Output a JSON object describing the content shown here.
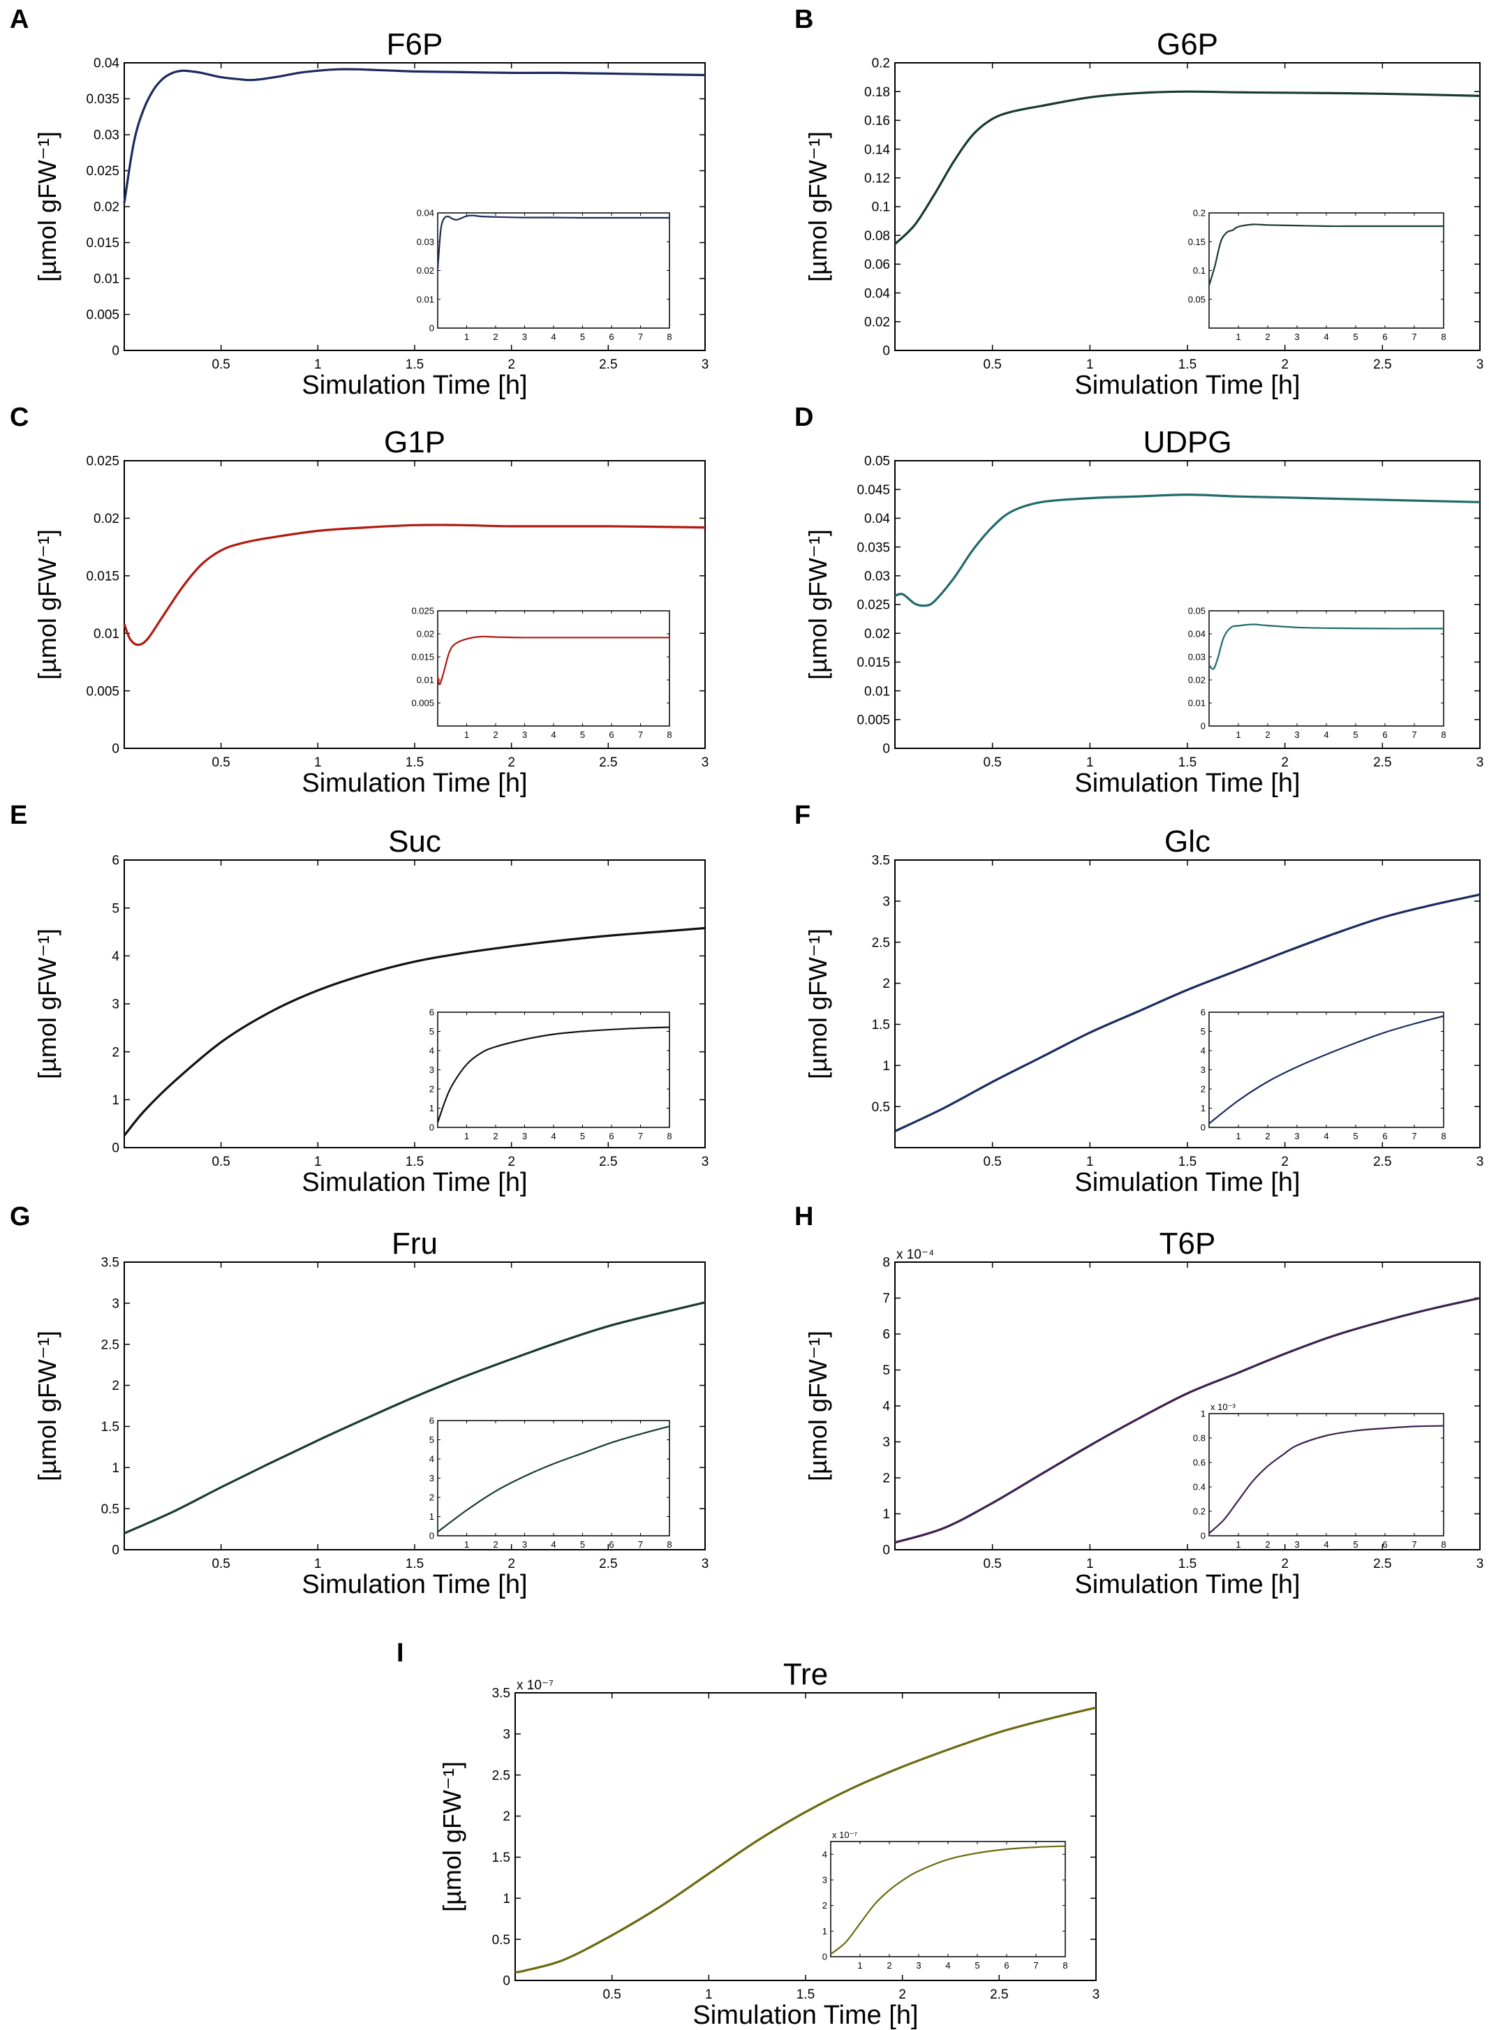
{
  "figure": {
    "ylabel": "[µmol gFW⁻¹]",
    "xlabel": "Simulation Time [h]"
  },
  "chart_data": [
    {
      "panel": "A",
      "type": "line",
      "title": "F6P",
      "color": "#1a2a5e",
      "xlabel": "Simulation Time [h]",
      "ylabel": "[µmol gFW⁻¹]",
      "xlim": [
        0,
        3
      ],
      "ylim": [
        0,
        0.04
      ],
      "xticks": [
        "0.5",
        "1",
        "1.5",
        "2",
        "2.5",
        "3"
      ],
      "yticks": [
        "0",
        "0.005",
        "0.01",
        "0.015",
        "0.02",
        "0.025",
        "0.03",
        "0.035",
        "0.04"
      ],
      "exponent": "",
      "x": [
        0,
        0.05,
        0.1,
        0.15,
        0.2,
        0.25,
        0.3,
        0.35,
        0.4,
        0.5,
        0.6,
        0.65,
        0.7,
        0.8,
        0.9,
        1.0,
        1.1,
        1.2,
        1.3,
        1.4,
        1.5,
        1.75,
        2.0,
        2.25,
        2.5,
        2.75,
        3.0
      ],
      "y": [
        0.0205,
        0.029,
        0.0335,
        0.0362,
        0.0378,
        0.0386,
        0.0389,
        0.0388,
        0.0386,
        0.038,
        0.0377,
        0.0376,
        0.0377,
        0.0381,
        0.0386,
        0.0389,
        0.0391,
        0.0391,
        0.039,
        0.0389,
        0.0388,
        0.0387,
        0.0386,
        0.0386,
        0.0385,
        0.0384,
        0.0383
      ],
      "inset": {
        "xlim": [
          0,
          8
        ],
        "ylim": [
          0,
          0.04
        ],
        "xticks": [
          "1",
          "2",
          "3",
          "4",
          "5",
          "6",
          "7",
          "8"
        ],
        "yticks": [
          "0",
          "0.01",
          "0.02",
          "0.03",
          "0.04"
        ],
        "exponent": "",
        "x": [
          0,
          0.1,
          0.2,
          0.35,
          0.5,
          0.65,
          0.8,
          1.0,
          1.2,
          1.5,
          2,
          3,
          4,
          5,
          6,
          7,
          8
        ],
        "y": [
          0.0205,
          0.0335,
          0.0378,
          0.0388,
          0.038,
          0.0376,
          0.0381,
          0.0389,
          0.0391,
          0.0388,
          0.0386,
          0.0384,
          0.0384,
          0.0383,
          0.0383,
          0.0383,
          0.0383
        ]
      }
    },
    {
      "panel": "B",
      "type": "line",
      "title": "G6P",
      "color": "#173b2e",
      "xlabel": "Simulation Time [h]",
      "ylabel": "[µmol gFW⁻¹]",
      "xlim": [
        0,
        3
      ],
      "ylim": [
        0,
        0.2
      ],
      "xticks": [
        "0.5",
        "1",
        "1.5",
        "2",
        "2.5",
        "3"
      ],
      "yticks": [
        "0",
        "0.02",
        "0.04",
        "0.06",
        "0.08",
        "0.1",
        "0.12",
        "0.14",
        "0.16",
        "0.18",
        "0.2"
      ],
      "exponent": "",
      "x": [
        0,
        0.1,
        0.2,
        0.3,
        0.4,
        0.5,
        0.6,
        0.75,
        1.0,
        1.25,
        1.5,
        1.75,
        2.0,
        2.5,
        3.0
      ],
      "y": [
        0.074,
        0.087,
        0.108,
        0.131,
        0.15,
        0.161,
        0.166,
        0.17,
        0.176,
        0.179,
        0.18,
        0.1795,
        0.1792,
        0.1785,
        0.177
      ],
      "inset": {
        "xlim": [
          0,
          8
        ],
        "ylim": [
          0,
          0.2
        ],
        "xticks": [
          "1",
          "2",
          "3",
          "4",
          "5",
          "6",
          "7",
          "8"
        ],
        "yticks": [
          "0.05",
          "0.1",
          "0.15",
          "0.2"
        ],
        "exponent": "",
        "x": [
          0,
          0.2,
          0.4,
          0.6,
          0.8,
          1.0,
          1.5,
          2,
          3,
          4,
          5,
          6,
          7,
          8
        ],
        "y": [
          0.074,
          0.108,
          0.15,
          0.166,
          0.17,
          0.176,
          0.18,
          0.179,
          0.178,
          0.177,
          0.177,
          0.177,
          0.177,
          0.177
        ]
      }
    },
    {
      "panel": "C",
      "type": "line",
      "title": "G1P",
      "color": "#b01a10",
      "xlabel": "Simulation Time [h]",
      "ylabel": "[µmol gFW⁻¹]",
      "xlim": [
        0,
        3
      ],
      "ylim": [
        0,
        0.025
      ],
      "xticks": [
        "0.5",
        "1",
        "1.5",
        "2",
        "2.5",
        "3"
      ],
      "yticks": [
        "0",
        "0.005",
        "0.01",
        "0.015",
        "0.02",
        "0.025"
      ],
      "exponent": "",
      "x": [
        0,
        0.03,
        0.07,
        0.12,
        0.2,
        0.3,
        0.4,
        0.5,
        0.6,
        0.75,
        1.0,
        1.25,
        1.5,
        1.75,
        2.0,
        2.5,
        3.0
      ],
      "y": [
        0.0108,
        0.0095,
        0.009,
        0.0095,
        0.0115,
        0.014,
        0.016,
        0.0172,
        0.0178,
        0.0183,
        0.0189,
        0.0192,
        0.0194,
        0.0194,
        0.0193,
        0.0193,
        0.0192
      ],
      "inset": {
        "xlim": [
          0,
          8
        ],
        "ylim": [
          0,
          0.025
        ],
        "xticks": [
          "1",
          "2",
          "3",
          "4",
          "5",
          "6",
          "7",
          "8"
        ],
        "yticks": [
          "0.005",
          "0.01",
          "0.015",
          "0.02",
          "0.025"
        ],
        "exponent": "",
        "x": [
          0,
          0.07,
          0.2,
          0.4,
          0.6,
          1.0,
          1.5,
          2,
          3,
          4,
          5,
          6,
          7,
          8
        ],
        "y": [
          0.0108,
          0.009,
          0.0115,
          0.016,
          0.0178,
          0.0189,
          0.0194,
          0.0193,
          0.0192,
          0.0192,
          0.0192,
          0.0192,
          0.0192,
          0.0192
        ]
      }
    },
    {
      "panel": "D",
      "type": "line",
      "title": "UDPG",
      "color": "#1f6a6a",
      "xlabel": "Simulation Time [h]",
      "ylabel": "[µmol gFW⁻¹]",
      "xlim": [
        0,
        3
      ],
      "ylim": [
        0,
        0.05
      ],
      "xticks": [
        "0.5",
        "1",
        "1.5",
        "2",
        "2.5",
        "3"
      ],
      "yticks": [
        "0",
        "0.005",
        "0.01",
        "0.015",
        "0.02",
        "0.025",
        "0.03",
        "0.035",
        "0.04",
        "0.045",
        "0.05"
      ],
      "exponent": "",
      "x": [
        0,
        0.04,
        0.1,
        0.15,
        0.2,
        0.3,
        0.4,
        0.5,
        0.6,
        0.75,
        1.0,
        1.25,
        1.5,
        1.75,
        2.0,
        2.5,
        3.0
      ],
      "y": [
        0.0265,
        0.0268,
        0.0252,
        0.0248,
        0.0255,
        0.0295,
        0.0345,
        0.0385,
        0.0412,
        0.0428,
        0.0435,
        0.0438,
        0.0441,
        0.0438,
        0.0436,
        0.0432,
        0.0428
      ],
      "inset": {
        "xlim": [
          0,
          8
        ],
        "ylim": [
          0,
          0.05
        ],
        "xticks": [
          "1",
          "2",
          "3",
          "4",
          "5",
          "6",
          "7",
          "8"
        ],
        "yticks": [
          "0",
          "0.01",
          "0.02",
          "0.03",
          "0.04",
          "0.05"
        ],
        "exponent": "",
        "x": [
          0,
          0.15,
          0.3,
          0.5,
          0.75,
          1.0,
          1.5,
          2,
          3,
          4,
          5,
          6,
          7,
          8
        ],
        "y": [
          0.0265,
          0.0248,
          0.0295,
          0.0385,
          0.0428,
          0.0435,
          0.0441,
          0.0436,
          0.0428,
          0.0425,
          0.0424,
          0.0423,
          0.0423,
          0.0423
        ]
      }
    },
    {
      "panel": "E",
      "type": "line",
      "title": "Suc",
      "color": "#111111",
      "xlabel": "Simulation Time [h]",
      "ylabel": "[µmol gFW⁻¹]",
      "xlim": [
        0,
        3
      ],
      "ylim": [
        0,
        6
      ],
      "xticks": [
        "0.5",
        "1",
        "1.5",
        "2",
        "2.5",
        "3"
      ],
      "yticks": [
        "0",
        "1",
        "2",
        "3",
        "4",
        "5",
        "6"
      ],
      "exponent": "",
      "x": [
        0,
        0.1,
        0.25,
        0.5,
        0.75,
        1.0,
        1.25,
        1.5,
        1.75,
        2.0,
        2.25,
        2.5,
        2.75,
        3.0
      ],
      "y": [
        0.25,
        0.75,
        1.35,
        2.2,
        2.82,
        3.28,
        3.62,
        3.88,
        4.06,
        4.2,
        4.32,
        4.42,
        4.5,
        4.58
      ],
      "inset": {
        "xlim": [
          0,
          8
        ],
        "ylim": [
          0,
          6
        ],
        "xticks": [
          "1",
          "2",
          "3",
          "4",
          "5",
          "6",
          "7",
          "8"
        ],
        "yticks": [
          "0",
          "1",
          "2",
          "3",
          "4",
          "5",
          "6"
        ],
        "exponent": "",
        "x": [
          0,
          0.25,
          0.5,
          1,
          1.5,
          2,
          3,
          4,
          5,
          6,
          7,
          8
        ],
        "y": [
          0.25,
          1.35,
          2.2,
          3.28,
          3.88,
          4.2,
          4.58,
          4.85,
          5.0,
          5.1,
          5.17,
          5.22
        ]
      }
    },
    {
      "panel": "F",
      "type": "line",
      "title": "Glc",
      "color": "#1a2a5e",
      "xlabel": "Simulation Time [h]",
      "ylabel": "[µmol gFW⁻¹]",
      "xlim": [
        0,
        3
      ],
      "ylim": [
        0,
        3.5
      ],
      "xticks": [
        "0.5",
        "1",
        "1.5",
        "2",
        "2.5",
        "3"
      ],
      "yticks": [
        "0.5",
        "1",
        "1.5",
        "2",
        "2.5",
        "3",
        "3.5"
      ],
      "exponent": "",
      "x": [
        0,
        0.25,
        0.5,
        0.75,
        1.0,
        1.25,
        1.5,
        1.75,
        2.0,
        2.25,
        2.5,
        2.75,
        3.0
      ],
      "y": [
        0.2,
        0.48,
        0.8,
        1.1,
        1.4,
        1.66,
        1.92,
        2.15,
        2.38,
        2.6,
        2.8,
        2.95,
        3.08
      ],
      "inset": {
        "xlim": [
          0,
          8
        ],
        "ylim": [
          0,
          6
        ],
        "xticks": [
          "1",
          "2",
          "3",
          "4",
          "5",
          "6",
          "7",
          "8"
        ],
        "yticks": [
          "0",
          "1",
          "2",
          "3",
          "4",
          "5",
          "6"
        ],
        "exponent": "",
        "x": [
          0,
          1,
          2,
          3,
          4,
          5,
          6,
          7,
          8
        ],
        "y": [
          0.2,
          1.4,
          2.38,
          3.15,
          3.8,
          4.4,
          4.95,
          5.4,
          5.8
        ]
      }
    },
    {
      "panel": "G",
      "type": "line",
      "title": "Fru",
      "color": "#173b2e",
      "xlabel": "Simulation Time [h]",
      "ylabel": "[µmol gFW⁻¹]",
      "xlim": [
        0,
        3
      ],
      "ylim": [
        0,
        3.5
      ],
      "xticks": [
        "0.5",
        "1",
        "1.5",
        "2",
        "2.5",
        "3"
      ],
      "yticks": [
        "0",
        "0.5",
        "1",
        "1.5",
        "2",
        "2.5",
        "3",
        "3.5"
      ],
      "exponent": "",
      "x": [
        0,
        0.25,
        0.5,
        0.75,
        1.0,
        1.25,
        1.5,
        1.75,
        2.0,
        2.25,
        2.5,
        2.75,
        3.0
      ],
      "y": [
        0.2,
        0.46,
        0.76,
        1.05,
        1.33,
        1.6,
        1.86,
        2.1,
        2.32,
        2.53,
        2.72,
        2.87,
        3.01
      ],
      "inset": {
        "xlim": [
          0,
          8
        ],
        "ylim": [
          0,
          6
        ],
        "xticks": [
          "1",
          "2",
          "3",
          "4",
          "5",
          "6",
          "7",
          "8"
        ],
        "yticks": [
          "0",
          "1",
          "2",
          "3",
          "4",
          "5",
          "6"
        ],
        "exponent": "",
        "x": [
          0,
          1,
          2,
          3,
          4,
          5,
          6,
          7,
          8
        ],
        "y": [
          0.2,
          1.33,
          2.32,
          3.1,
          3.75,
          4.3,
          4.85,
          5.3,
          5.7
        ]
      }
    },
    {
      "panel": "H",
      "type": "line",
      "title": "T6P",
      "color": "#3d1f4f",
      "xlabel": "Simulation Time [h]",
      "ylabel": "[µmol gFW⁻¹]",
      "xlim": [
        0,
        3
      ],
      "ylim": [
        0,
        8
      ],
      "xticks": [
        "0.5",
        "1",
        "1.5",
        "2",
        "2.5",
        "3"
      ],
      "yticks": [
        "0",
        "1",
        "2",
        "3",
        "4",
        "5",
        "6",
        "7",
        "8"
      ],
      "exponent": "x 10⁻⁴",
      "x": [
        0,
        0.25,
        0.5,
        0.75,
        1.0,
        1.25,
        1.5,
        1.75,
        2.0,
        2.25,
        2.5,
        2.75,
        3.0
      ],
      "y": [
        0.2,
        0.6,
        1.3,
        2.1,
        2.9,
        3.65,
        4.35,
        4.9,
        5.45,
        5.95,
        6.35,
        6.7,
        7.0
      ],
      "inset": {
        "xlim": [
          0,
          8
        ],
        "ylim": [
          0,
          1
        ],
        "xticks": [
          "1",
          "2",
          "3",
          "4",
          "5",
          "6",
          "7",
          "8"
        ],
        "yticks": [
          "0",
          "0.2",
          "0.4",
          "0.6",
          "0.8",
          "1"
        ],
        "exponent": "x 10⁻³",
        "x": [
          0,
          0.5,
          1,
          1.5,
          2,
          2.5,
          3,
          4,
          5,
          6,
          7,
          8
        ],
        "y": [
          0.02,
          0.13,
          0.29,
          0.45,
          0.57,
          0.66,
          0.74,
          0.82,
          0.86,
          0.88,
          0.895,
          0.9
        ]
      }
    },
    {
      "panel": "I",
      "type": "line",
      "title": "Tre",
      "color": "#6b6a10",
      "xlabel": "Simulation Time [h]",
      "ylabel": "[µmol gFW⁻¹]",
      "xlim": [
        0,
        3
      ],
      "ylim": [
        0,
        3.5
      ],
      "xticks": [
        "0.5",
        "1",
        "1.5",
        "2",
        "2.5",
        "3"
      ],
      "yticks": [
        "0",
        "0.5",
        "1",
        "1.5",
        "2",
        "2.5",
        "3",
        "3.5"
      ],
      "exponent": "x 10⁻⁷",
      "x": [
        0,
        0.05,
        0.25,
        0.5,
        0.75,
        1.0,
        1.25,
        1.5,
        1.75,
        2.0,
        2.25,
        2.5,
        2.75,
        3.0
      ],
      "y": [
        0.1,
        0.12,
        0.25,
        0.55,
        0.9,
        1.3,
        1.7,
        2.05,
        2.35,
        2.6,
        2.82,
        3.02,
        3.18,
        3.32
      ],
      "inset": {
        "xlim": [
          0,
          8
        ],
        "ylim": [
          0,
          4.5
        ],
        "xticks": [
          "1",
          "2",
          "3",
          "4",
          "5",
          "6",
          "7",
          "8"
        ],
        "yticks": [
          "0",
          "1",
          "2",
          "3",
          "4"
        ],
        "exponent": "x 10⁻⁷",
        "x": [
          0,
          0.5,
          1,
          1.5,
          2,
          2.5,
          3,
          4,
          5,
          6,
          7,
          8
        ],
        "y": [
          0.1,
          0.55,
          1.3,
          2.05,
          2.6,
          3.02,
          3.35,
          3.8,
          4.05,
          4.2,
          4.28,
          4.32
        ]
      }
    }
  ]
}
